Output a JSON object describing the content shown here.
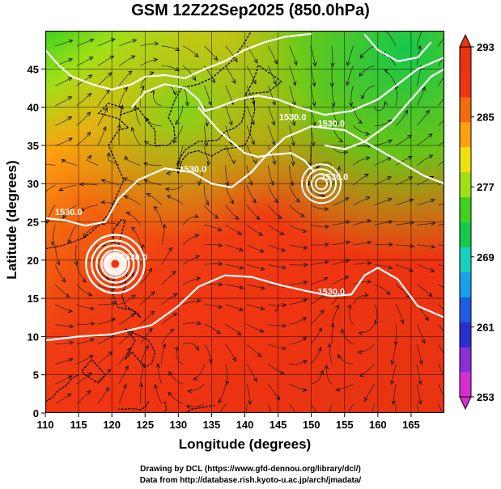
{
  "title": "GSM 12Z22Sep2025 (850.0hPa)",
  "xlabel": "Longitude (degrees)",
  "ylabel": "Latitude  (degrees)",
  "credits": [
    "Drawing by DCL (https://www.gfd-dennou.org/library/dcl/)",
    "Data from http://database.rish.kyoto-u.ac.jp/arch/jmadata/"
  ],
  "chart_data": {
    "type": "map",
    "variable": "temperature (K) with geopotential contours and wind streamlines",
    "x": {
      "range": [
        110,
        170
      ],
      "ticks": [
        110,
        115,
        120,
        125,
        130,
        135,
        140,
        145,
        150,
        155,
        160,
        165
      ]
    },
    "y": {
      "range": [
        0,
        50
      ],
      "ticks": [
        0,
        5,
        10,
        15,
        20,
        25,
        30,
        35,
        40,
        45
      ]
    },
    "colorbar": {
      "range": [
        253,
        293
      ],
      "ticks": [
        253,
        261,
        269,
        277,
        285,
        293
      ]
    },
    "contour_labels": [
      {
        "lon": 113.5,
        "lat": 25.9,
        "text": "1530.0"
      },
      {
        "lon": 123.3,
        "lat": 20.0,
        "text": "1530.0"
      },
      {
        "lon": 147.2,
        "lat": 38.3,
        "text": "1530.0"
      },
      {
        "lon": 153.0,
        "lat": 37.5,
        "text": "1530.0"
      },
      {
        "lon": 153.5,
        "lat": 30.5,
        "text": "1530.0"
      },
      {
        "lon": 153.0,
        "lat": 15.5,
        "text": "1530.0"
      },
      {
        "lon": 132.2,
        "lat": 31.5,
        "text": "1530.0"
      }
    ],
    "cyclones": [
      {
        "lon": 120.5,
        "lat": 19.5
      },
      {
        "lon": 151.5,
        "lat": 30.0
      }
    ]
  }
}
